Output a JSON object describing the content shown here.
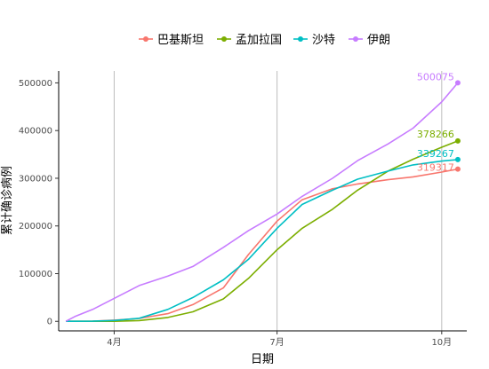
{
  "chart_data": {
    "type": "line",
    "xlabel": "日期",
    "ylabel": "累计确诊病例",
    "x_axis": {
      "type": "date",
      "range": [
        "2020-03-01",
        "2020-10-15"
      ],
      "ticks": [
        {
          "date": "2020-04-01",
          "label": "4月"
        },
        {
          "date": "2020-07-01",
          "label": "7月"
        },
        {
          "date": "2020-10-01",
          "label": "10月"
        }
      ],
      "grid": true
    },
    "y_axis": {
      "range": [
        -20000,
        525000
      ],
      "ticks": [
        0,
        100000,
        200000,
        300000,
        400000,
        500000
      ],
      "grid": false
    },
    "legend": {
      "position": "top"
    },
    "series": [
      {
        "name": "巴基斯坦",
        "color": "#F8766D",
        "end_label": "319317",
        "points": [
          [
            "2020-03-05",
            0
          ],
          [
            "2020-03-20",
            500
          ],
          [
            "2020-04-01",
            2500
          ],
          [
            "2020-04-15",
            6000
          ],
          [
            "2020-05-01",
            16000
          ],
          [
            "2020-05-15",
            35000
          ],
          [
            "2020-06-01",
            70000
          ],
          [
            "2020-06-15",
            140000
          ],
          [
            "2020-07-01",
            210000
          ],
          [
            "2020-07-15",
            255000
          ],
          [
            "2020-08-01",
            278000
          ],
          [
            "2020-08-15",
            288000
          ],
          [
            "2020-09-01",
            297000
          ],
          [
            "2020-09-15",
            303000
          ],
          [
            "2020-10-01",
            313000
          ],
          [
            "2020-10-10",
            319317
          ]
        ]
      },
      {
        "name": "孟加拉国",
        "color": "#7CAE00",
        "end_label": "378266",
        "points": [
          [
            "2020-03-05",
            0
          ],
          [
            "2020-03-20",
            50
          ],
          [
            "2020-04-01",
            60
          ],
          [
            "2020-04-15",
            1500
          ],
          [
            "2020-05-01",
            8000
          ],
          [
            "2020-05-15",
            20000
          ],
          [
            "2020-06-01",
            47000
          ],
          [
            "2020-06-15",
            90000
          ],
          [
            "2020-07-01",
            150000
          ],
          [
            "2020-07-15",
            195000
          ],
          [
            "2020-08-01",
            235000
          ],
          [
            "2020-08-15",
            275000
          ],
          [
            "2020-09-01",
            315000
          ],
          [
            "2020-09-15",
            340000
          ],
          [
            "2020-10-01",
            365000
          ],
          [
            "2020-10-10",
            378266
          ]
        ]
      },
      {
        "name": "沙特",
        "color": "#00BFC4",
        "end_label": "339267",
        "points": [
          [
            "2020-03-05",
            0
          ],
          [
            "2020-03-20",
            300
          ],
          [
            "2020-04-01",
            1800
          ],
          [
            "2020-04-15",
            6500
          ],
          [
            "2020-05-01",
            25000
          ],
          [
            "2020-05-15",
            50000
          ],
          [
            "2020-06-01",
            87000
          ],
          [
            "2020-06-15",
            130000
          ],
          [
            "2020-07-01",
            195000
          ],
          [
            "2020-07-15",
            245000
          ],
          [
            "2020-08-01",
            275000
          ],
          [
            "2020-08-15",
            298000
          ],
          [
            "2020-09-01",
            315000
          ],
          [
            "2020-09-15",
            328000
          ],
          [
            "2020-10-01",
            336000
          ],
          [
            "2020-10-10",
            339267
          ]
        ]
      },
      {
        "name": "伊朗",
        "color": "#C77CFF",
        "end_label": "500075",
        "points": [
          [
            "2020-03-05",
            0
          ],
          [
            "2020-03-10",
            10000
          ],
          [
            "2020-03-20",
            25000
          ],
          [
            "2020-04-01",
            48000
          ],
          [
            "2020-04-15",
            75000
          ],
          [
            "2020-05-01",
            95000
          ],
          [
            "2020-05-15",
            115000
          ],
          [
            "2020-06-01",
            155000
          ],
          [
            "2020-06-15",
            190000
          ],
          [
            "2020-07-01",
            225000
          ],
          [
            "2020-07-15",
            262000
          ],
          [
            "2020-08-01",
            300000
          ],
          [
            "2020-08-15",
            337000
          ],
          [
            "2020-09-01",
            372000
          ],
          [
            "2020-09-15",
            405000
          ],
          [
            "2020-10-01",
            460000
          ],
          [
            "2020-10-10",
            500075
          ]
        ]
      }
    ]
  }
}
